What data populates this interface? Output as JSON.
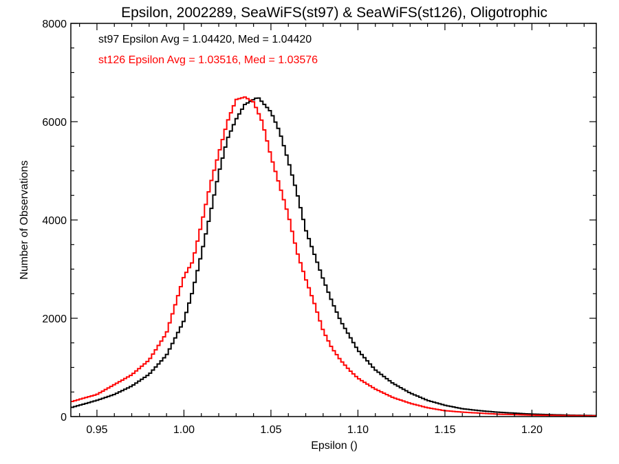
{
  "chart_data": {
    "type": "line",
    "title": "Epsilon, 2002289, SeaWiFS(st97) & SeaWiFS(st126), Oligotrophic",
    "xlabel": "Epsilon ()",
    "ylabel": "Number of Observations",
    "xlim": [
      0.935,
      1.237
    ],
    "ylim": [
      0,
      8000
    ],
    "x_ticks": [
      0.95,
      1.0,
      1.05,
      1.1,
      1.15,
      1.2
    ],
    "x_tick_labels": [
      "0.95",
      "1.00",
      "1.05",
      "1.10",
      "1.15",
      "1.20"
    ],
    "y_ticks": [
      0,
      2000,
      4000,
      6000,
      8000
    ],
    "y_tick_labels": [
      "0",
      "2000",
      "4000",
      "6000",
      "8000"
    ],
    "grid": false,
    "step": true,
    "annotations": [
      {
        "text": "st97 Epsilon Avg = 1.04420, Med = 1.04420",
        "color": "#000000"
      },
      {
        "text": "st126 Epsilon Avg = 1.03516, Med = 1.03576",
        "color": "#ff0000"
      }
    ],
    "series": [
      {
        "color": "#000000",
        "x": [
          0.935,
          0.95,
          0.96,
          0.97,
          0.98,
          0.99,
          1.0,
          1.005,
          1.01,
          1.015,
          1.02,
          1.025,
          1.03,
          1.035,
          1.04,
          1.0425,
          1.045,
          1.05,
          1.055,
          1.06,
          1.065,
          1.07,
          1.075,
          1.08,
          1.085,
          1.09,
          1.095,
          1.1,
          1.11,
          1.12,
          1.13,
          1.14,
          1.15,
          1.16,
          1.17,
          1.18,
          1.19,
          1.2,
          1.21,
          1.22,
          1.237
        ],
        "values": [
          180,
          330,
          450,
          620,
          860,
          1250,
          1950,
          2550,
          3300,
          4100,
          4950,
          5650,
          6050,
          6350,
          6450,
          6500,
          6400,
          6200,
          5800,
          5200,
          4550,
          3800,
          3300,
          2800,
          2350,
          1950,
          1650,
          1350,
          950,
          680,
          480,
          330,
          230,
          160,
          120,
          90,
          70,
          50,
          40,
          30,
          20
        ]
      },
      {
        "color": "#ff0000",
        "x": [
          0.935,
          0.95,
          0.96,
          0.97,
          0.98,
          0.99,
          1.0,
          1.005,
          1.01,
          1.015,
          1.02,
          1.025,
          1.03,
          1.035,
          1.04,
          1.045,
          1.05,
          1.055,
          1.06,
          1.065,
          1.07,
          1.075,
          1.08,
          1.085,
          1.09,
          1.095,
          1.1,
          1.11,
          1.12,
          1.13,
          1.14,
          1.15,
          1.16,
          1.17,
          1.18,
          1.19,
          1.2,
          1.21,
          1.22,
          1.237
        ],
        "values": [
          300,
          450,
          650,
          850,
          1150,
          1700,
          2850,
          3150,
          3900,
          4700,
          5350,
          6000,
          6450,
          6500,
          6400,
          6000,
          5300,
          4700,
          4100,
          3350,
          2800,
          2300,
          1750,
          1400,
          1150,
          950,
          780,
          560,
          390,
          270,
          180,
          120,
          90,
          70,
          50,
          40,
          30,
          25,
          20,
          15
        ]
      }
    ]
  }
}
